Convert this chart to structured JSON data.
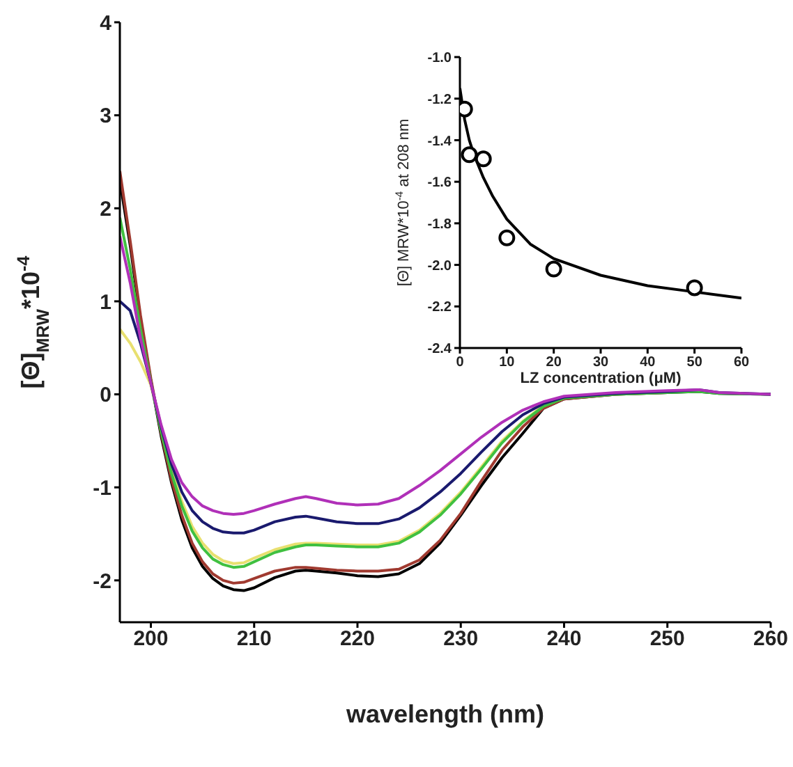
{
  "chart_data": [
    {
      "type": "line",
      "xlabel": "wavelength (nm)",
      "ylabel": "[Θ]$_{MRW}$*10$^{-4}$",
      "xlim": [
        197,
        260
      ],
      "xticks": [
        200,
        210,
        220,
        230,
        240,
        250,
        260
      ],
      "ylim": [
        -2.45,
        4
      ],
      "yticks": [
        -2,
        -1,
        0,
        1,
        2,
        3,
        4
      ],
      "grid": false,
      "x": [
        197,
        198,
        199,
        200,
        201,
        202,
        203,
        204,
        205,
        206,
        207,
        208,
        209,
        210,
        212,
        214,
        215,
        216,
        218,
        220,
        222,
        224,
        226,
        228,
        230,
        232,
        234,
        236,
        238,
        240,
        245,
        250,
        253,
        255,
        260
      ],
      "series": [
        {
          "color": "#000000",
          "values": [
            2.3,
            1.6,
            0.8,
            0.15,
            -0.45,
            -0.95,
            -1.35,
            -1.65,
            -1.85,
            -1.98,
            -2.06,
            -2.1,
            -2.11,
            -2.08,
            -1.97,
            -1.9,
            -1.89,
            -1.9,
            -1.92,
            -1.95,
            -1.96,
            -1.93,
            -1.82,
            -1.6,
            -1.3,
            -0.98,
            -0.68,
            -0.42,
            -0.15,
            -0.05,
            0.0,
            0.02,
            0.03,
            0.01,
            0.0
          ]
        },
        {
          "color": "#a03a30",
          "values": [
            2.4,
            1.65,
            0.85,
            0.17,
            -0.42,
            -0.92,
            -1.3,
            -1.6,
            -1.8,
            -1.93,
            -2.0,
            -2.03,
            -2.02,
            -1.98,
            -1.9,
            -1.86,
            -1.86,
            -1.87,
            -1.89,
            -1.9,
            -1.9,
            -1.88,
            -1.78,
            -1.57,
            -1.28,
            -0.93,
            -0.6,
            -0.35,
            -0.15,
            -0.05,
            0.0,
            0.02,
            null,
            null,
            null
          ]
        },
        {
          "color": "#e8e070",
          "values": [
            0.7,
            0.55,
            0.35,
            0.1,
            -0.35,
            -0.8,
            -1.15,
            -1.42,
            -1.6,
            -1.72,
            -1.79,
            -1.82,
            -1.81,
            -1.76,
            -1.67,
            -1.61,
            -1.6,
            -1.6,
            -1.61,
            -1.62,
            -1.62,
            -1.58,
            -1.46,
            -1.28,
            -1.05,
            -0.78,
            -0.5,
            -0.29,
            -0.12,
            -0.04,
            null,
            null,
            null,
            null,
            null
          ]
        },
        {
          "color": "#40c040",
          "values": [
            1.9,
            1.35,
            0.7,
            0.13,
            -0.4,
            -0.85,
            -1.2,
            -1.47,
            -1.65,
            -1.77,
            -1.83,
            -1.86,
            -1.85,
            -1.8,
            -1.7,
            -1.64,
            -1.62,
            -1.62,
            -1.63,
            -1.64,
            -1.64,
            -1.6,
            -1.48,
            -1.3,
            -1.07,
            -0.8,
            -0.52,
            -0.3,
            -0.13,
            -0.04,
            0.0,
            0.02,
            0.03,
            0.01,
            0.0
          ]
        },
        {
          "color": "#1a1a6e",
          "values": [
            1.0,
            0.9,
            0.55,
            0.12,
            -0.35,
            -0.75,
            -1.05,
            -1.25,
            -1.37,
            -1.44,
            -1.48,
            -1.49,
            -1.49,
            -1.46,
            -1.37,
            -1.32,
            -1.31,
            -1.33,
            -1.37,
            -1.39,
            -1.39,
            -1.34,
            -1.22,
            -1.05,
            -0.85,
            -0.62,
            -0.4,
            -0.22,
            -0.1,
            -0.03,
            0.01,
            0.03,
            0.05,
            0.02,
            0.0
          ]
        },
        {
          "color": "#b030b8",
          "values": [
            1.7,
            1.2,
            0.6,
            0.12,
            -0.33,
            -0.7,
            -0.95,
            -1.1,
            -1.2,
            -1.25,
            -1.28,
            -1.29,
            -1.28,
            -1.25,
            -1.18,
            -1.12,
            -1.1,
            -1.12,
            -1.17,
            -1.19,
            -1.18,
            -1.12,
            -0.98,
            -0.82,
            -0.64,
            -0.46,
            -0.3,
            -0.17,
            -0.08,
            -0.02,
            0.02,
            0.04,
            0.05,
            0.02,
            0.0
          ]
        }
      ]
    },
    {
      "type": "scatter",
      "xlabel": "LZ concentration (μM)",
      "ylabel": "[Θ] MRW*10$^{-4}$ at 208 nm",
      "xlim": [
        0,
        60
      ],
      "xticks": [
        0,
        10,
        20,
        30,
        40,
        50,
        60
      ],
      "ylim": [
        -2.4,
        -1.0
      ],
      "yticks": [
        {
          "value": -2.4,
          "label": "-2.4"
        },
        {
          "value": -2.2,
          "label": "-2.2"
        },
        {
          "value": -2,
          "label": "-2.0"
        },
        {
          "value": -1.8,
          "label": "-1.8"
        },
        {
          "value": -1.6,
          "label": "-1.6"
        },
        {
          "value": -1.4,
          "label": "-1.4"
        },
        {
          "value": -1.2,
          "label": "-1.2"
        },
        {
          "value": -1,
          "label": "-1.0"
        }
      ],
      "grid": false,
      "x": [
        1,
        2,
        5,
        10,
        20,
        50
      ],
      "series": [
        {
          "marker": "circle",
          "color": "#000000",
          "values": [
            -1.25,
            -1.47,
            -1.49,
            -1.87,
            -2.02,
            -2.11
          ]
        },
        {
          "type": "line",
          "color": "#000000",
          "x": [
            0,
            1,
            2,
            3,
            5,
            7,
            10,
            15,
            20,
            30,
            40,
            50,
            60
          ],
          "values": [
            -1.15,
            -1.3,
            -1.4,
            -1.47,
            -1.58,
            -1.67,
            -1.78,
            -1.9,
            -1.97,
            -2.05,
            -2.1,
            -2.13,
            -2.16
          ]
        }
      ]
    }
  ]
}
